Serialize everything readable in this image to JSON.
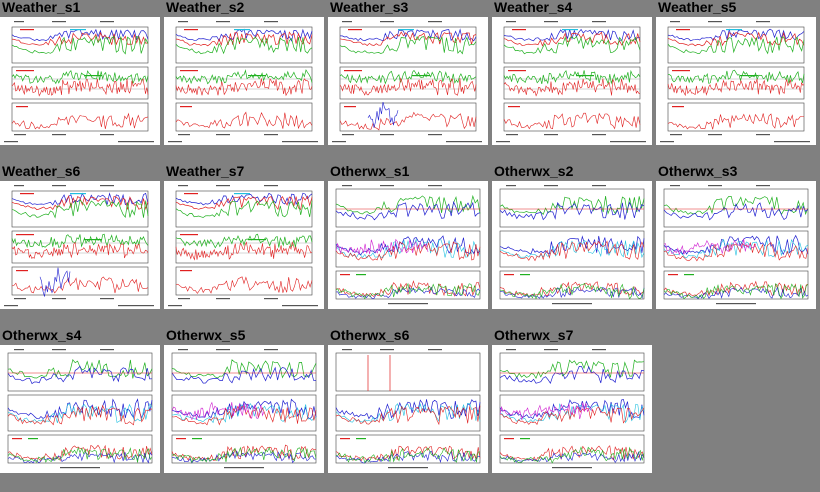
{
  "gallery": {
    "items": [
      {
        "title": "Weather_s1",
        "style": "weather"
      },
      {
        "title": "Weather_s2",
        "style": "weather"
      },
      {
        "title": "Weather_s3",
        "style": "weather"
      },
      {
        "title": "Weather_s4",
        "style": "weather"
      },
      {
        "title": "Weather_s5",
        "style": "weather"
      },
      {
        "title": "Weather_s6",
        "style": "weather"
      },
      {
        "title": "Weather_s7",
        "style": "weather"
      },
      {
        "title": "Otherwx_s1",
        "style": "otherwx"
      },
      {
        "title": "Otherwx_s2",
        "style": "otherwx"
      },
      {
        "title": "Otherwx_s3",
        "style": "otherwx"
      },
      {
        "title": "Otherwx_s4",
        "style": "otherwx"
      },
      {
        "title": "Otherwx_s5",
        "style": "otherwx"
      },
      {
        "title": "Otherwx_s6",
        "style": "otherwx"
      },
      {
        "title": "Otherwx_s7",
        "style": "otherwx"
      }
    ]
  },
  "colors": {
    "background": "#808080",
    "thumbnail_bg": "#ffffff",
    "series": [
      "#e02020",
      "#2020d0",
      "#20b020",
      "#20c0e0",
      "#d020d0"
    ]
  }
}
